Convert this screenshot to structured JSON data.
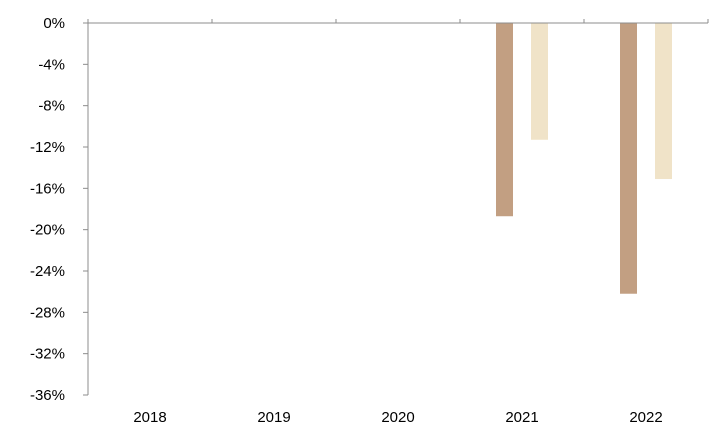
{
  "chart_data": {
    "type": "bar",
    "categories": [
      "2018",
      "2019",
      "2020",
      "2021",
      "2022"
    ],
    "series": [
      {
        "values": [
          0,
          0,
          0,
          -18.7,
          -26.2
        ],
        "color": "#c29f82"
      },
      {
        "values": [
          0,
          0,
          0,
          -11.3,
          -15.1
        ],
        "color": "#f0e3c8"
      }
    ],
    "ylim": [
      -36,
      0
    ],
    "yticks": [
      0,
      -4,
      -8,
      -12,
      -16,
      -20,
      -24,
      -28,
      -32,
      -36
    ],
    "ytick_labels": [
      "0%",
      "-4%",
      "-8%",
      "-12%",
      "-16%",
      "-20%",
      "-24%",
      "-28%",
      "-32%",
      "-36%"
    ],
    "grid": false,
    "axis_color": "#8c8c8c"
  }
}
